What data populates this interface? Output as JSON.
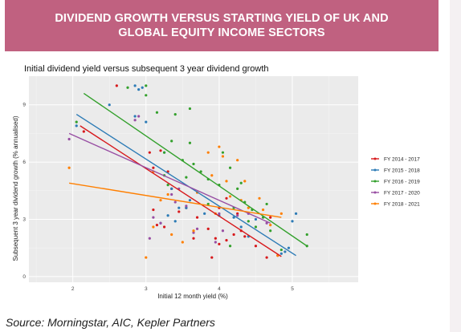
{
  "banner": {
    "title": "DIVIDEND GROWTH VERSUS STARTING YIELD OF UK AND GLOBAL EQUITY INCOME SECTORS",
    "bg_color": "#c06180"
  },
  "source": "Source: Morningstar, AIC, Kepler Partners",
  "chart_data": {
    "type": "scatter",
    "title": "Initial dividend yield versus subsequent 3 year dividend growth",
    "xlabel": "Initial 12 month yield (%)",
    "ylabel": "Subsequent 3 year dividend growth (% annualised)",
    "xlim": [
      1.4,
      5.9
    ],
    "ylim": [
      -0.3,
      10.5
    ],
    "x_ticks": [
      2,
      3,
      4,
      5
    ],
    "y_ticks": [
      0,
      3,
      6,
      9
    ],
    "y_tick_labels": [
      "0",
      "3",
      "6",
      "9"
    ],
    "grid": true,
    "legend_position": "right",
    "background": "#ebebeb",
    "series": [
      {
        "name": "FY 2014 - 2017",
        "color": "#d7191c",
        "fit": [
          [
            2.1,
            7.9
          ],
          [
            4.85,
            1.05
          ]
        ],
        "points": [
          [
            2.15,
            7.6
          ],
          [
            2.6,
            10.0
          ],
          [
            3.05,
            6.5
          ],
          [
            3.2,
            6.6
          ],
          [
            3.1,
            5.7
          ],
          [
            3.3,
            5.5
          ],
          [
            3.35,
            4.6
          ],
          [
            3.45,
            3.4
          ],
          [
            3.1,
            3.5
          ],
          [
            3.15,
            2.7
          ],
          [
            3.25,
            2.6
          ],
          [
            3.55,
            3.6
          ],
          [
            3.7,
            3.1
          ],
          [
            3.85,
            2.5
          ],
          [
            3.95,
            2.0
          ],
          [
            3.9,
            1.0
          ],
          [
            4.0,
            1.7
          ],
          [
            4.1,
            1.9
          ],
          [
            4.2,
            2.2
          ],
          [
            4.25,
            3.3
          ],
          [
            4.3,
            2.4
          ],
          [
            4.35,
            2.1
          ],
          [
            4.0,
            3.6
          ],
          [
            4.1,
            4.1
          ],
          [
            3.65,
            2.0
          ],
          [
            4.8,
            1.1
          ],
          [
            4.5,
            1.6
          ],
          [
            4.65,
            1.0
          ],
          [
            4.7,
            3.1
          ]
        ]
      },
      {
        "name": "FY 2015 - 2018",
        "color": "#2c7bb6",
        "fit": [
          [
            2.05,
            8.5
          ],
          [
            5.05,
            1.1
          ]
        ],
        "points": [
          [
            2.05,
            7.9
          ],
          [
            2.5,
            9.0
          ],
          [
            2.85,
            10.0
          ],
          [
            2.9,
            9.8
          ],
          [
            2.95,
            9.9
          ],
          [
            2.85,
            8.4
          ],
          [
            3.0,
            8.1
          ],
          [
            3.35,
            4.6
          ],
          [
            3.45,
            3.6
          ],
          [
            3.3,
            3.2
          ],
          [
            3.4,
            2.9
          ],
          [
            3.55,
            3.6
          ],
          [
            3.2,
            2.8
          ],
          [
            3.25,
            6.5
          ],
          [
            3.6,
            4.0
          ],
          [
            3.8,
            3.3
          ],
          [
            4.0,
            3.2
          ],
          [
            4.2,
            3.1
          ],
          [
            4.3,
            2.6
          ],
          [
            4.4,
            2.1
          ],
          [
            4.5,
            3.0
          ],
          [
            4.85,
            1.2
          ],
          [
            4.9,
            1.3
          ],
          [
            5.0,
            2.9
          ],
          [
            5.05,
            3.3
          ],
          [
            4.95,
            1.5
          ]
        ]
      },
      {
        "name": "FY 2016 - 2019",
        "color": "#33a02c",
        "fit": [
          [
            2.15,
            9.6
          ],
          [
            5.2,
            1.6
          ]
        ],
        "points": [
          [
            2.05,
            8.1
          ],
          [
            2.75,
            9.9
          ],
          [
            3.0,
            9.5
          ],
          [
            3.0,
            10.0
          ],
          [
            3.15,
            8.6
          ],
          [
            3.35,
            7.1
          ],
          [
            3.4,
            8.5
          ],
          [
            3.6,
            8.8
          ],
          [
            3.25,
            6.5
          ],
          [
            3.5,
            6.1
          ],
          [
            3.55,
            5.2
          ],
          [
            3.65,
            5.9
          ],
          [
            3.6,
            7.0
          ],
          [
            3.75,
            5.5
          ],
          [
            3.85,
            5.1
          ],
          [
            4.0,
            4.8
          ],
          [
            4.15,
            5.7
          ],
          [
            4.25,
            4.6
          ],
          [
            4.3,
            4.9
          ],
          [
            4.35,
            3.9
          ],
          [
            4.45,
            3.5
          ],
          [
            4.6,
            3.1
          ],
          [
            4.7,
            2.4
          ],
          [
            4.5,
            2.6
          ],
          [
            4.4,
            2.9
          ],
          [
            4.05,
            6.5
          ],
          [
            3.85,
            3.8
          ],
          [
            3.25,
            5.3
          ],
          [
            5.2,
            2.2
          ],
          [
            5.2,
            1.6
          ],
          [
            4.85,
            1.4
          ],
          [
            4.65,
            3.8
          ],
          [
            4.2,
            3.6
          ],
          [
            4.15,
            1.6
          ],
          [
            3.3,
            4.8
          ]
        ]
      },
      {
        "name": "FY 2017 - 2020",
        "color": "#984ea3",
        "fit": [
          [
            1.95,
            7.5
          ],
          [
            4.7,
            2.8
          ]
        ],
        "points": [
          [
            1.95,
            7.2
          ],
          [
            2.85,
            8.2
          ],
          [
            2.9,
            8.4
          ],
          [
            3.05,
            2.0
          ],
          [
            3.1,
            3.1
          ],
          [
            3.2,
            2.8
          ],
          [
            3.35,
            4.3
          ],
          [
            3.55,
            3.7
          ],
          [
            3.65,
            2.3
          ],
          [
            3.45,
            4.6
          ],
          [
            3.95,
            1.8
          ],
          [
            4.0,
            3.3
          ],
          [
            4.05,
            2.4
          ],
          [
            4.25,
            3.2
          ],
          [
            4.4,
            3.3
          ],
          [
            4.65,
            2.8
          ],
          [
            3.7,
            2.5
          ],
          [
            3.4,
            3.9
          ]
        ]
      },
      {
        "name": "FY 2018 - 2021",
        "color": "#ff7f00",
        "fit": [
          [
            1.95,
            4.9
          ],
          [
            4.85,
            3.1
          ]
        ],
        "points": [
          [
            1.95,
            5.7
          ],
          [
            3.0,
            1.0
          ],
          [
            3.1,
            5.5
          ],
          [
            3.2,
            4.0
          ],
          [
            3.3,
            4.3
          ],
          [
            3.35,
            2.2
          ],
          [
            3.5,
            1.8
          ],
          [
            3.65,
            2.4
          ],
          [
            3.7,
            4.4
          ],
          [
            3.85,
            6.5
          ],
          [
            3.9,
            5.3
          ],
          [
            3.95,
            3.3
          ],
          [
            4.0,
            6.8
          ],
          [
            4.05,
            6.3
          ],
          [
            4.1,
            5.0
          ],
          [
            4.15,
            4.2
          ],
          [
            4.25,
            6.1
          ],
          [
            4.3,
            4.0
          ],
          [
            4.35,
            5.0
          ],
          [
            4.4,
            3.6
          ],
          [
            4.55,
            4.1
          ],
          [
            4.6,
            3.5
          ],
          [
            4.7,
            2.7
          ],
          [
            4.8,
            1.1
          ],
          [
            4.85,
            3.3
          ],
          [
            3.1,
            2.6
          ]
        ]
      }
    ]
  }
}
